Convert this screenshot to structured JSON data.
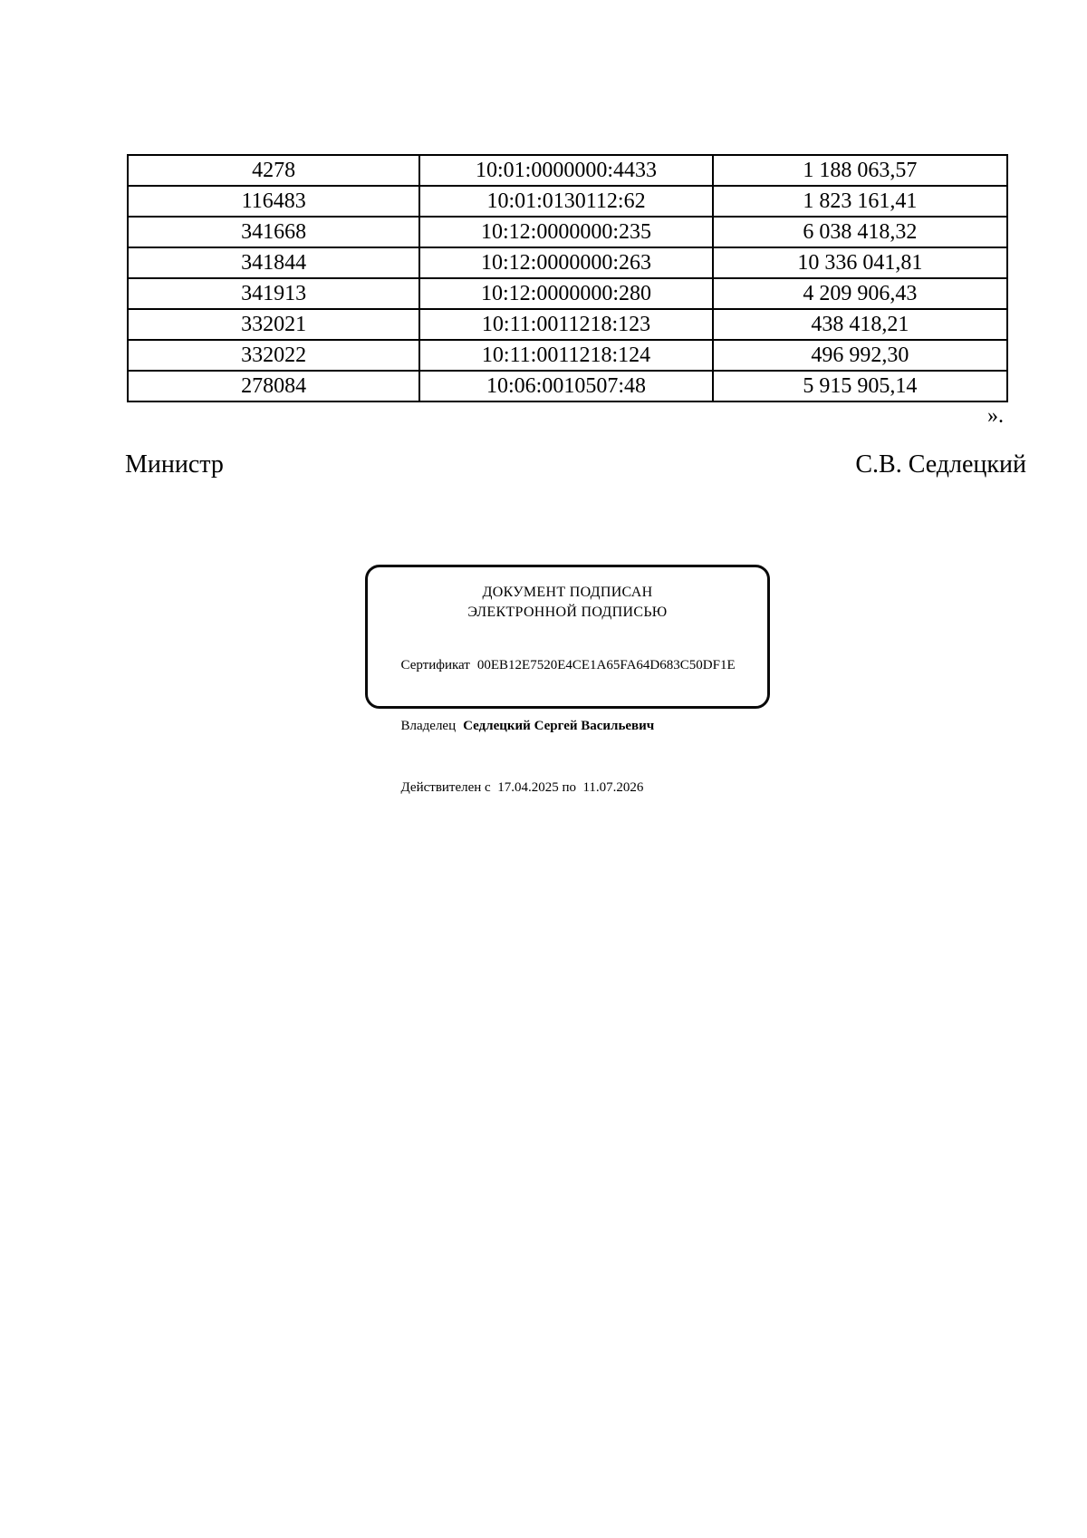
{
  "page": {
    "background": "#ffffff",
    "text_color": "#000000"
  },
  "table": {
    "columns": [
      "registry-number",
      "cadastral-number",
      "amount"
    ],
    "rows": [
      [
        "4278",
        "10:01:0000000:4433",
        "1 188 063,57"
      ],
      [
        "116483",
        "10:01:0130112:62",
        "1 823 161,41"
      ],
      [
        "341668",
        "10:12:0000000:235",
        "6 038 418,32"
      ],
      [
        "341844",
        "10:12:0000000:263",
        "10 336 041,81"
      ],
      [
        "341913",
        "10:12:0000000:280",
        "4 209 906,43"
      ],
      [
        "332021",
        "10:11:0011218:123",
        "438 418,21"
      ],
      [
        "332022",
        "10:11:0011218:124",
        "496 992,30"
      ],
      [
        "278084",
        "10:06:0010507:48",
        "5 915 905,14"
      ]
    ]
  },
  "closing_quote": "».",
  "signature": {
    "title": "Министр",
    "name": "С.В. Седлецкий"
  },
  "stamp": {
    "title_line1": "ДОКУМЕНТ ПОДПИСАН",
    "title_line2": "ЭЛЕКТРОННОЙ ПОДПИСЬЮ",
    "certificate_label": "Сертификат",
    "certificate_value": "00EB12E7520E4CE1A65FA64D683C50DF1E",
    "owner_label": "Владелец",
    "owner_value": "Седлецкий Сергей Васильевич",
    "validity": "Действителен с  17.04.2025 по  11.07.2026",
    "border_color": "#0a0a0a"
  }
}
